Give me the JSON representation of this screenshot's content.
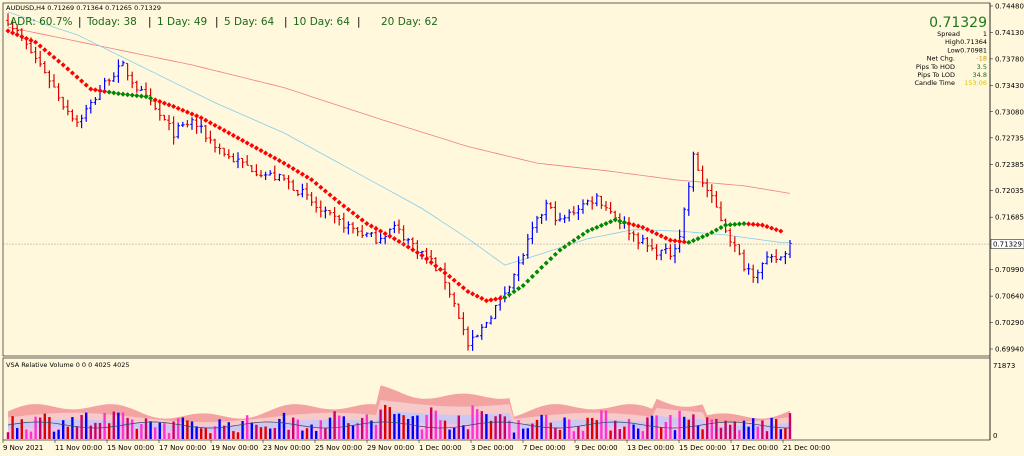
{
  "header": {
    "symbol_line": "AUDUSD,H4  0.71269 0.71364 0.71265 0.71329",
    "adr": "ADR: 60.7%",
    "today": "Today: 38",
    "day1": "1 Day: 49",
    "day5": "5 Day: 64",
    "day10": "10 Day: 64",
    "day20": "20 Day: 62"
  },
  "info_panel": {
    "price": "0.71329",
    "rows": [
      {
        "label": "Spread",
        "value": "1"
      },
      {
        "label": "High",
        "value": "0.71364"
      },
      {
        "label": "Low",
        "value": "0.70981"
      },
      {
        "label": "Net Chg.",
        "value": "-18"
      },
      {
        "label": "Pips To HOD",
        "value": "3.5"
      },
      {
        "label": "Pips To LOD",
        "value": "34.8"
      },
      {
        "label": "Candle Time",
        "value": "153:06"
      }
    ]
  },
  "colors": {
    "bg": "#fff8dc",
    "up": "#0000ff",
    "down": "#dc0000",
    "ma_red": "#ff0000",
    "ma_green": "#008800",
    "ma_slow": "#f08080",
    "ma_mid": "#87ceeb",
    "vol_band1": "#f4a3a3",
    "vol_band2": "#f8c9c9",
    "vol_band3": "#ccc8f2",
    "vol_band4": "#f2c2e6"
  },
  "chart_data": [
    {
      "type": "bar",
      "name": "price",
      "symbol": "AUDUSD",
      "timeframe": "H4",
      "ylim": [
        0.6994,
        0.7448
      ],
      "y_ticks": [
        "0.74480",
        "0.74130",
        "0.73780",
        "0.73430",
        "0.73080",
        "0.72735",
        "0.72385",
        "0.72035",
        "0.71685",
        "0.71329",
        "0.70990",
        "0.70640",
        "0.70290",
        "0.69940"
      ],
      "current_price": 0.71329,
      "x_labels": [
        "9 Nov 2021",
        "11 Nov 00:00",
        "15 Nov 00:00",
        "17 Nov 00:00",
        "19 Nov 00:00",
        "23 Nov 00:00",
        "25 Nov 00:00",
        "29 Nov 00:00",
        "1 Dec 00:00",
        "3 Dec 00:00",
        "7 Dec 00:00",
        "9 Dec 00:00",
        "13 Dec 00:00",
        "15 Dec 00:00",
        "17 Dec 00:00",
        "21 Dec 00:00"
      ],
      "close_path": [
        [
          0,
          0.743
        ],
        [
          4,
          0.7395
        ],
        [
          8,
          0.7362
        ],
        [
          12,
          0.7318
        ],
        [
          15,
          0.7295
        ],
        [
          18,
          0.7318
        ],
        [
          22,
          0.7354
        ],
        [
          25,
          0.7368
        ],
        [
          28,
          0.734
        ],
        [
          32,
          0.731
        ],
        [
          36,
          0.728
        ],
        [
          40,
          0.7296
        ],
        [
          44,
          0.727
        ],
        [
          48,
          0.7248
        ],
        [
          52,
          0.7236
        ],
        [
          56,
          0.7225
        ],
        [
          60,
          0.7218
        ],
        [
          64,
          0.72
        ],
        [
          68,
          0.7175
        ],
        [
          72,
          0.7162
        ],
        [
          76,
          0.715
        ],
        [
          80,
          0.714
        ],
        [
          84,
          0.7155
        ],
        [
          88,
          0.7132
        ],
        [
          92,
          0.711
        ],
        [
          95,
          0.7085
        ],
        [
          98,
          0.7038
        ],
        [
          100,
          0.6998
        ],
        [
          102,
          0.701
        ],
        [
          105,
          0.704
        ],
        [
          108,
          0.707
        ],
        [
          111,
          0.7105
        ],
        [
          114,
          0.715
        ],
        [
          117,
          0.7185
        ],
        [
          120,
          0.7162
        ],
        [
          124,
          0.7182
        ],
        [
          128,
          0.7195
        ],
        [
          132,
          0.717
        ],
        [
          136,
          0.7145
        ],
        [
          140,
          0.7125
        ],
        [
          144,
          0.712
        ],
        [
          146,
          0.7145
        ],
        [
          148,
          0.721
        ],
        [
          149,
          0.7248
        ],
        [
          151,
          0.7215
        ],
        [
          154,
          0.718
        ],
        [
          157,
          0.714
        ],
        [
          160,
          0.7105
        ],
        [
          162,
          0.7095
        ],
        [
          165,
          0.711
        ],
        [
          168,
          0.7115
        ],
        [
          170,
          0.7133
        ]
      ],
      "ma_fast": {
        "name": "",
        "points": [
          [
            0,
            0.7415
          ],
          [
            6,
            0.74
          ],
          [
            12,
            0.737
          ],
          [
            18,
            0.7338
          ],
          [
            24,
            0.7332
          ],
          [
            30,
            0.7328
          ],
          [
            36,
            0.7315
          ],
          [
            42,
            0.73
          ],
          [
            48,
            0.728
          ],
          [
            54,
            0.726
          ],
          [
            60,
            0.724
          ],
          [
            66,
            0.7218
          ],
          [
            72,
            0.7188
          ],
          [
            78,
            0.716
          ],
          [
            84,
            0.714
          ],
          [
            90,
            0.7118
          ],
          [
            96,
            0.709
          ],
          [
            100,
            0.707
          ],
          [
            104,
            0.7058
          ],
          [
            108,
            0.7062
          ],
          [
            112,
            0.7078
          ],
          [
            116,
            0.7102
          ],
          [
            120,
            0.7125
          ],
          [
            126,
            0.715
          ],
          [
            132,
            0.7165
          ],
          [
            138,
            0.7155
          ],
          [
            144,
            0.7138
          ],
          [
            148,
            0.7135
          ],
          [
            152,
            0.7145
          ],
          [
            156,
            0.7158
          ],
          [
            160,
            0.716
          ],
          [
            164,
            0.7158
          ],
          [
            168,
            0.715
          ]
        ],
        "green_ranges": [
          [
            22,
            31
          ],
          [
            108,
            134
          ],
          [
            148,
            160
          ]
        ]
      },
      "ma_mid": {
        "name": "",
        "points": [
          [
            0,
            0.744
          ],
          [
            15,
            0.741
          ],
          [
            30,
            0.7365
          ],
          [
            45,
            0.732
          ],
          [
            60,
            0.728
          ],
          [
            75,
            0.723
          ],
          [
            90,
            0.718
          ],
          [
            100,
            0.714
          ],
          [
            108,
            0.7105
          ],
          [
            116,
            0.712
          ],
          [
            126,
            0.714
          ],
          [
            136,
            0.7152
          ],
          [
            146,
            0.715
          ],
          [
            156,
            0.7145
          ],
          [
            168,
            0.7135
          ]
        ]
      },
      "ma_slow": {
        "name": "",
        "points": [
          [
            0,
            0.742
          ],
          [
            20,
            0.7395
          ],
          [
            40,
            0.737
          ],
          [
            60,
            0.734
          ],
          [
            80,
            0.73
          ],
          [
            100,
            0.7262
          ],
          [
            115,
            0.724
          ],
          [
            130,
            0.723
          ],
          [
            145,
            0.7218
          ],
          [
            160,
            0.721
          ],
          [
            170,
            0.72
          ]
        ]
      }
    },
    {
      "type": "bar",
      "name": "volume",
      "title": "VSA Relative Volume 0 0 0 4025 4025",
      "y_ticks": [
        "71873",
        "0"
      ],
      "ylim": [
        0,
        71873
      ],
      "bars": 170
    }
  ]
}
